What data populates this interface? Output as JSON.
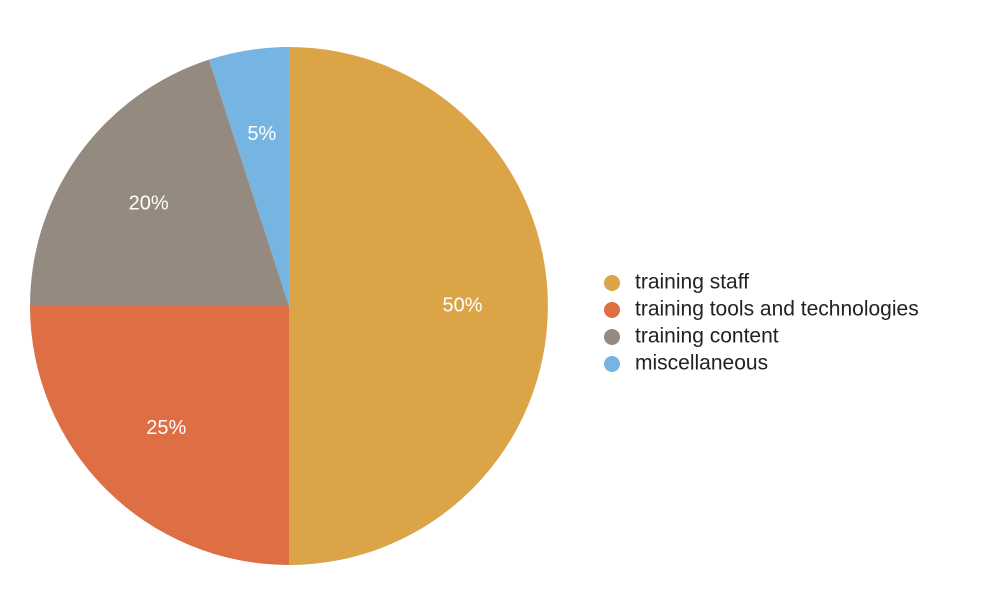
{
  "chart_data": {
    "type": "pie",
    "categories": [
      "training staff",
      "training tools and technologies",
      "training content",
      "miscellaneous"
    ],
    "values": [
      50,
      25,
      20,
      5
    ],
    "value_labels": [
      "50%",
      "25%",
      "20%",
      "5%"
    ],
    "colors": [
      "#dba446",
      "#de6e43",
      "#958a7f",
      "#76b4e2"
    ],
    "legend": "right"
  }
}
